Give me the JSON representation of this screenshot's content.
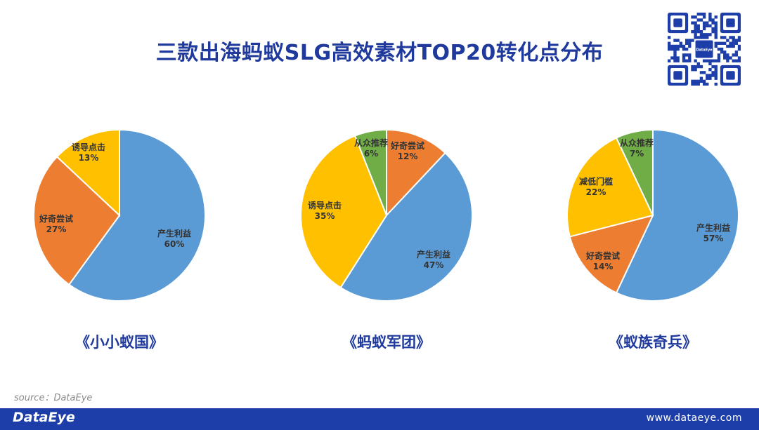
{
  "title": "三款出海蚂蚁SLG高效素材TOP20转化点分布",
  "source": "source：DataEye",
  "footer": {
    "logo": "DataEye",
    "url": "www.dataeye.com"
  },
  "qr_badge": "DataEye",
  "colors": {
    "产生利益": "#5b9bd5",
    "好奇尝试": "#ed7d31",
    "诱导点击": "#ffc000",
    "减低门槛": "#ffc000",
    "从众推荐": "#70ad47"
  },
  "chart_data": [
    {
      "type": "pie",
      "title": "《小小蚁国》",
      "categories": [
        "产生利益",
        "好奇尝试",
        "诱导点击"
      ],
      "values": [
        60,
        27,
        13
      ],
      "labels": [
        "60%",
        "27%",
        "13%"
      ]
    },
    {
      "type": "pie",
      "title": "《蚂蚁军团》",
      "categories": [
        "好奇尝试",
        "产生利益",
        "诱导点击",
        "从众推荐"
      ],
      "values": [
        12,
        47,
        35,
        6
      ],
      "labels": [
        "12%",
        "47%",
        "35%",
        "6%"
      ]
    },
    {
      "type": "pie",
      "title": "《蚁族奇兵》",
      "categories": [
        "产生利益",
        "好奇尝试",
        "减低门槛",
        "从众推荐"
      ],
      "values": [
        57,
        14,
        22,
        7
      ],
      "labels": [
        "57%",
        "14%",
        "22%",
        "7%"
      ]
    }
  ]
}
